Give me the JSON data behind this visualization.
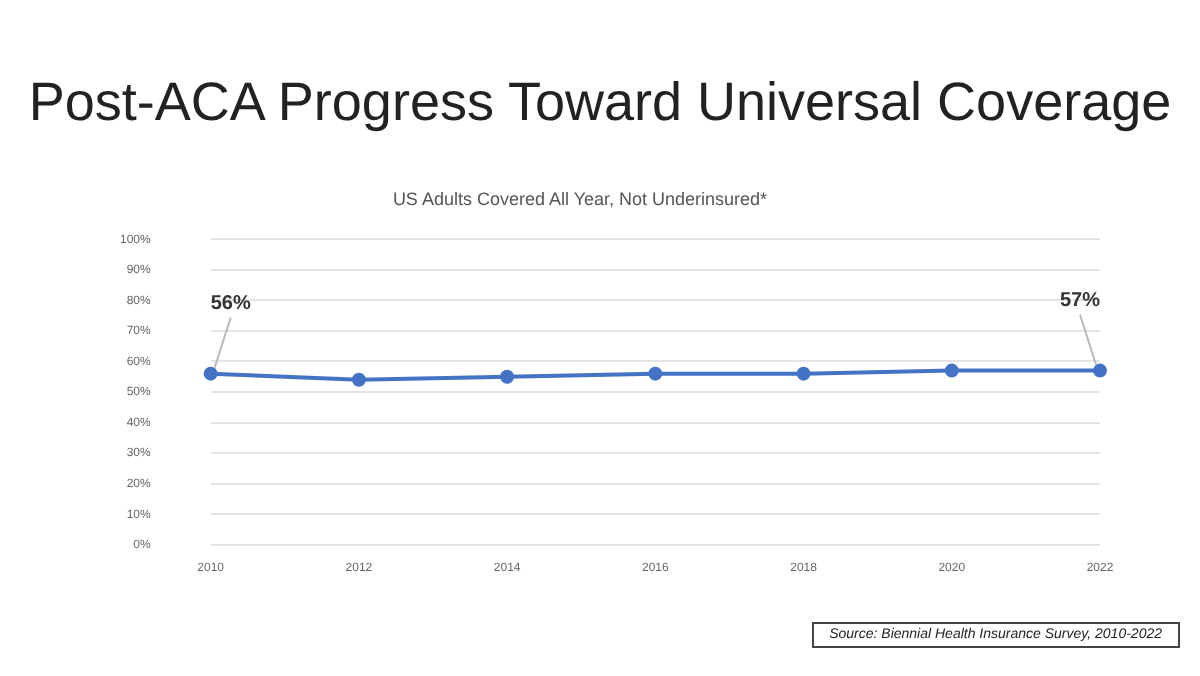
{
  "chart_data": {
    "type": "line",
    "title": "Post-ACA Progress Toward Universal Coverage",
    "subtitle": "US Adults Covered All Year, Not Underinsured*",
    "categories": [
      "2010",
      "2012",
      "2014",
      "2016",
      "2018",
      "2020",
      "2022"
    ],
    "series": [
      {
        "color": "#4472c4",
        "values": [
          56,
          54,
          55,
          56,
          56,
          57,
          57
        ]
      }
    ],
    "value_labels": [
      "56%",
      null,
      null,
      null,
      null,
      null,
      "57%"
    ],
    "ylim": [
      0,
      100
    ],
    "yticks": [
      {
        "value": 0,
        "label": "0%"
      },
      {
        "value": 10,
        "label": "10%"
      },
      {
        "value": 20,
        "label": "20%"
      },
      {
        "value": 30,
        "label": "30%"
      },
      {
        "value": 40,
        "label": "40%"
      },
      {
        "value": 50,
        "label": "50%"
      },
      {
        "value": 60,
        "label": "60%"
      },
      {
        "value": 70,
        "label": "70%"
      },
      {
        "value": 80,
        "label": "80%"
      },
      {
        "value": 90,
        "label": "90%"
      },
      {
        "value": 100,
        "label": "100%"
      }
    ],
    "grid": "y",
    "legend": false,
    "marker": "circle",
    "line_style": "solid",
    "annotations": [
      "Source: Biennial Health Insurance Survey, 2010-2022"
    ]
  }
}
